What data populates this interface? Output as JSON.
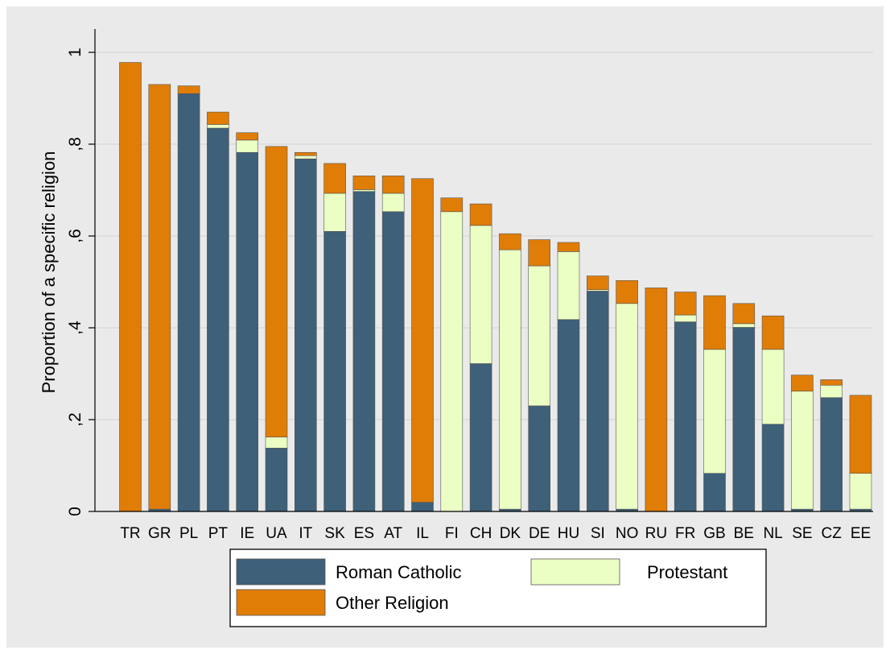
{
  "chart_data": {
    "type": "bar",
    "stacked": true,
    "ylabel": "Proportion of a specific religion",
    "xlabel": "",
    "ylim": [
      0,
      1.04
    ],
    "yticks": [
      0,
      0.2,
      0.4,
      0.6,
      0.8,
      1
    ],
    "ytick_labels": [
      "0",
      ",2",
      ",4",
      ",6",
      ",8",
      "1"
    ],
    "grid": "horizontal",
    "legend_position": "bottom",
    "categories": [
      "TR",
      "GR",
      "PL",
      "PT",
      "IE",
      "UA",
      "IT",
      "SK",
      "ES",
      "AT",
      "IL",
      "FI",
      "CH",
      "DK",
      "DE",
      "HU",
      "SI",
      "NO",
      "RU",
      "FR",
      "GB",
      "BE",
      "NL",
      "SE",
      "CZ",
      "EE"
    ],
    "series": [
      {
        "name": "Roman Catholic",
        "color": "#3e6079",
        "values": [
          0.0,
          0.005,
          0.91,
          0.835,
          0.782,
          0.138,
          0.768,
          0.61,
          0.697,
          0.653,
          0.02,
          0.0,
          0.322,
          0.005,
          0.23,
          0.418,
          0.48,
          0.005,
          0.0,
          0.413,
          0.083,
          0.401,
          0.19,
          0.005,
          0.248,
          0.005
        ]
      },
      {
        "name": "Protestant",
        "color": "#ebffc4",
        "values": [
          0.0,
          0.0,
          0.0,
          0.008,
          0.027,
          0.024,
          0.007,
          0.083,
          0.004,
          0.04,
          0.0,
          0.653,
          0.301,
          0.565,
          0.305,
          0.148,
          0.003,
          0.448,
          0.0,
          0.015,
          0.27,
          0.008,
          0.163,
          0.257,
          0.027,
          0.078
        ]
      },
      {
        "name": "Other Religion",
        "color": "#e07d07",
        "values": [
          0.978,
          0.925,
          0.017,
          0.027,
          0.016,
          0.633,
          0.007,
          0.065,
          0.03,
          0.038,
          0.705,
          0.03,
          0.047,
          0.035,
          0.057,
          0.02,
          0.03,
          0.05,
          0.487,
          0.05,
          0.117,
          0.044,
          0.073,
          0.035,
          0.012,
          0.17
        ]
      }
    ]
  }
}
